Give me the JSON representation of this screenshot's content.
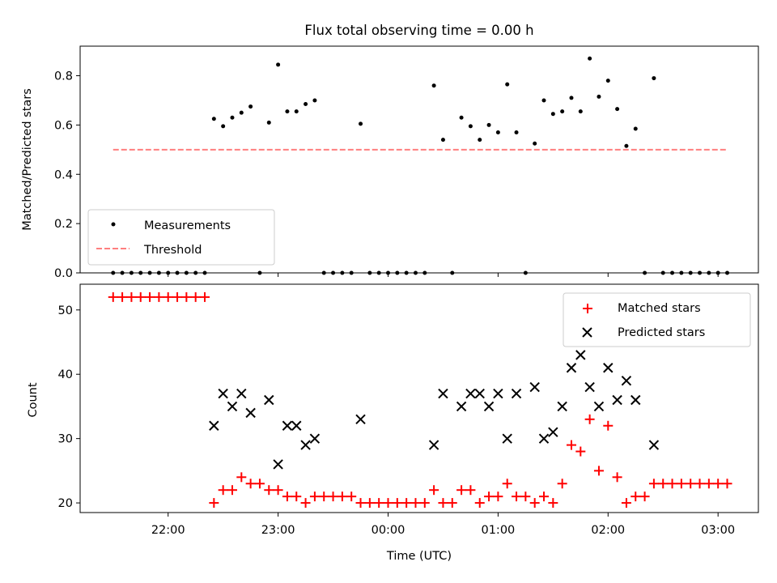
{
  "chart_data": [
    {
      "type": "scatter",
      "title": "Flux total observing time = 0.00 h",
      "xlabel": "",
      "ylabel": "Matched/Predicted stars",
      "ylim": [
        0,
        0.92
      ],
      "yticks": [
        0.0,
        0.2,
        0.4,
        0.6,
        0.8
      ],
      "ytick_labels": [
        "0.0",
        "0.2",
        "0.4",
        "0.6",
        "0.8"
      ],
      "xlim": [
        "21:12",
        "03:22"
      ],
      "xticks": [
        "22:00",
        "23:00",
        "00:00",
        "01:00",
        "02:00",
        "03:00"
      ],
      "legend_position": "lower-left",
      "series": [
        {
          "name": "Measurements",
          "marker": "dot",
          "color": "#000000",
          "points": [
            [
              "21:30",
              0
            ],
            [
              "21:35",
              0
            ],
            [
              "21:40",
              0
            ],
            [
              "21:45",
              0
            ],
            [
              "21:50",
              0
            ],
            [
              "21:55",
              0
            ],
            [
              "22:00",
              0
            ],
            [
              "22:05",
              0
            ],
            [
              "22:10",
              0
            ],
            [
              "22:15",
              0
            ],
            [
              "22:20",
              0
            ],
            [
              "22:25",
              0.625
            ],
            [
              "22:30",
              0.595
            ],
            [
              "22:35",
              0.63
            ],
            [
              "22:40",
              0.65
            ],
            [
              "22:45",
              0.675
            ],
            [
              "22:50",
              0
            ],
            [
              "22:55",
              0.61
            ],
            [
              "23:00",
              0.845
            ],
            [
              "23:05",
              0.655
            ],
            [
              "23:10",
              0.655
            ],
            [
              "23:15",
              0.685
            ],
            [
              "23:20",
              0.7
            ],
            [
              "23:25",
              0
            ],
            [
              "23:30",
              0
            ],
            [
              "23:35",
              0
            ],
            [
              "23:40",
              0
            ],
            [
              "23:45",
              0.605
            ],
            [
              "23:50",
              0
            ],
            [
              "23:55",
              0
            ],
            [
              "00:00",
              0
            ],
            [
              "00:05",
              0
            ],
            [
              "00:10",
              0
            ],
            [
              "00:15",
              0
            ],
            [
              "00:20",
              0
            ],
            [
              "00:25",
              0.76
            ],
            [
              "00:30",
              0.54
            ],
            [
              "00:35",
              0
            ],
            [
              "00:40",
              0.63
            ],
            [
              "00:45",
              0.595
            ],
            [
              "00:50",
              0.54
            ],
            [
              "00:55",
              0.6
            ],
            [
              "01:00",
              0.57
            ],
            [
              "01:05",
              0.765
            ],
            [
              "01:10",
              0.57
            ],
            [
              "01:15",
              0
            ],
            [
              "01:20",
              0.525
            ],
            [
              "01:25",
              0.7
            ],
            [
              "01:30",
              0.645
            ],
            [
              "01:35",
              0.655
            ],
            [
              "01:40",
              0.71
            ],
            [
              "01:45",
              0.655
            ],
            [
              "01:50",
              0.87
            ],
            [
              "01:55",
              0.715
            ],
            [
              "02:00",
              0.78
            ],
            [
              "02:05",
              0.665
            ],
            [
              "02:10",
              0.515
            ],
            [
              "02:15",
              0.585
            ],
            [
              "02:20",
              0
            ],
            [
              "02:25",
              0.79
            ],
            [
              "02:30",
              0
            ],
            [
              "02:35",
              0
            ],
            [
              "02:40",
              0
            ],
            [
              "02:45",
              0
            ],
            [
              "02:50",
              0
            ],
            [
              "02:55",
              0
            ],
            [
              "03:00",
              0
            ],
            [
              "03:05",
              0
            ]
          ]
        },
        {
          "name": "Threshold",
          "marker": "dashed-line",
          "color": "#ff7f7f",
          "points": [
            [
              "21:30",
              0.5
            ],
            [
              "03:05",
              0.5
            ]
          ]
        }
      ]
    },
    {
      "type": "scatter",
      "title": "",
      "xlabel": "Time (UTC)",
      "ylabel": "Count",
      "ylim": [
        18.5,
        54
      ],
      "yticks": [
        20,
        30,
        40,
        50
      ],
      "ytick_labels": [
        "20",
        "30",
        "40",
        "50"
      ],
      "xlim": [
        "21:12",
        "03:22"
      ],
      "xticks": [
        "22:00",
        "23:00",
        "00:00",
        "01:00",
        "02:00",
        "03:00"
      ],
      "xtick_labels": [
        "22:00",
        "23:00",
        "00:00",
        "01:00",
        "02:00",
        "03:00"
      ],
      "legend_position": "upper-right",
      "series": [
        {
          "name": "Matched stars",
          "marker": "plus",
          "color": "#ff0000",
          "points": [
            [
              "21:30",
              52
            ],
            [
              "21:35",
              52
            ],
            [
              "21:40",
              52
            ],
            [
              "21:45",
              52
            ],
            [
              "21:50",
              52
            ],
            [
              "21:55",
              52
            ],
            [
              "22:00",
              52
            ],
            [
              "22:05",
              52
            ],
            [
              "22:10",
              52
            ],
            [
              "22:15",
              52
            ],
            [
              "22:20",
              52
            ],
            [
              "22:25",
              20
            ],
            [
              "22:30",
              22
            ],
            [
              "22:35",
              22
            ],
            [
              "22:40",
              24
            ],
            [
              "22:45",
              23
            ],
            [
              "22:50",
              23
            ],
            [
              "22:55",
              22
            ],
            [
              "23:00",
              22
            ],
            [
              "23:05",
              21
            ],
            [
              "23:10",
              21
            ],
            [
              "23:15",
              20
            ],
            [
              "23:20",
              21
            ],
            [
              "23:25",
              21
            ],
            [
              "23:30",
              21
            ],
            [
              "23:35",
              21
            ],
            [
              "23:40",
              21
            ],
            [
              "23:45",
              20
            ],
            [
              "23:50",
              20
            ],
            [
              "23:55",
              20
            ],
            [
              "00:00",
              20
            ],
            [
              "00:05",
              20
            ],
            [
              "00:10",
              20
            ],
            [
              "00:15",
              20
            ],
            [
              "00:20",
              20
            ],
            [
              "00:25",
              22
            ],
            [
              "00:30",
              20
            ],
            [
              "00:35",
              20
            ],
            [
              "00:40",
              22
            ],
            [
              "00:45",
              22
            ],
            [
              "00:50",
              20
            ],
            [
              "00:55",
              21
            ],
            [
              "01:00",
              21
            ],
            [
              "01:05",
              23
            ],
            [
              "01:10",
              21
            ],
            [
              "01:15",
              21
            ],
            [
              "01:20",
              20
            ],
            [
              "01:25",
              21
            ],
            [
              "01:30",
              20
            ],
            [
              "01:35",
              23
            ],
            [
              "01:40",
              29
            ],
            [
              "01:45",
              28
            ],
            [
              "01:50",
              33
            ],
            [
              "01:55",
              25
            ],
            [
              "02:00",
              32
            ],
            [
              "02:05",
              24
            ],
            [
              "02:10",
              20
            ],
            [
              "02:15",
              21
            ],
            [
              "02:20",
              21
            ],
            [
              "02:25",
              23
            ],
            [
              "02:30",
              23
            ],
            [
              "02:35",
              23
            ],
            [
              "02:40",
              23
            ],
            [
              "02:45",
              23
            ],
            [
              "02:50",
              23
            ],
            [
              "02:55",
              23
            ],
            [
              "03:00",
              23
            ],
            [
              "03:05",
              23
            ]
          ]
        },
        {
          "name": "Predicted stars",
          "marker": "x",
          "color": "#000000",
          "points": [
            [
              "22:25",
              32
            ],
            [
              "22:30",
              37
            ],
            [
              "22:35",
              35
            ],
            [
              "22:40",
              37
            ],
            [
              "22:45",
              34
            ],
            [
              "22:55",
              36
            ],
            [
              "23:00",
              26
            ],
            [
              "23:05",
              32
            ],
            [
              "23:10",
              32
            ],
            [
              "23:15",
              29
            ],
            [
              "23:20",
              30
            ],
            [
              "23:45",
              33
            ],
            [
              "00:25",
              29
            ],
            [
              "00:30",
              37
            ],
            [
              "00:40",
              35
            ],
            [
              "00:45",
              37
            ],
            [
              "00:50",
              37
            ],
            [
              "00:55",
              35
            ],
            [
              "01:00",
              37
            ],
            [
              "01:05",
              30
            ],
            [
              "01:10",
              37
            ],
            [
              "01:20",
              38
            ],
            [
              "01:25",
              30
            ],
            [
              "01:30",
              31
            ],
            [
              "01:35",
              35
            ],
            [
              "01:40",
              41
            ],
            [
              "01:45",
              43
            ],
            [
              "01:50",
              38
            ],
            [
              "01:55",
              35
            ],
            [
              "02:00",
              41
            ],
            [
              "02:05",
              36
            ],
            [
              "02:10",
              39
            ],
            [
              "02:15",
              36
            ],
            [
              "02:25",
              29
            ]
          ]
        }
      ]
    }
  ]
}
